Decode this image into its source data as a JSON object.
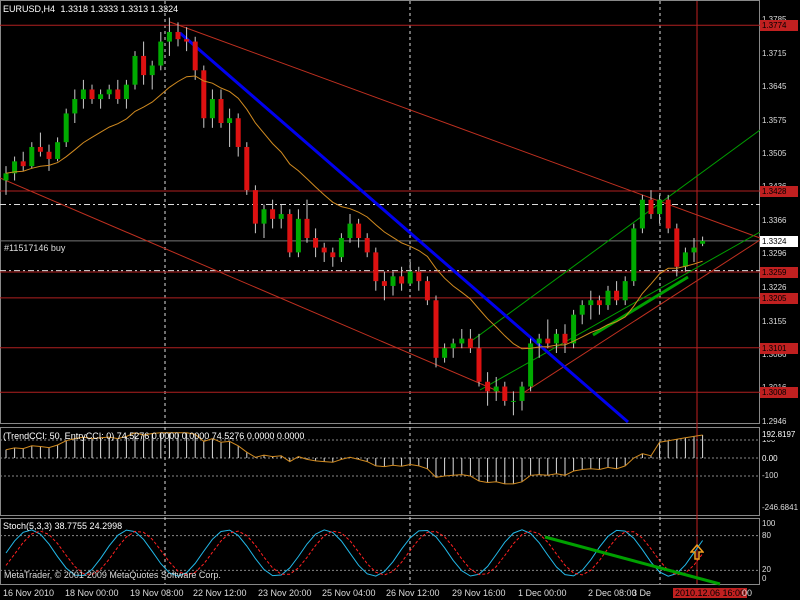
{
  "header": {
    "symbol": "EURUSD,H4",
    "ohlc": "1.3318 1.3333 1.3313 1.3324"
  },
  "order_label": "#11517146 buy",
  "price_axis": {
    "ticks": [
      "1.3785",
      "1.3715",
      "1.3645",
      "1.3575",
      "1.3505",
      "1.3436",
      "1.3366",
      "1.3296",
      "1.3226",
      "1.3155",
      "1.3086",
      "1.3016",
      "1.2946"
    ],
    "tags": [
      {
        "text": "1.3774",
        "kind": "red"
      },
      {
        "text": "1.3428",
        "kind": "red"
      },
      {
        "text": "1.3324",
        "kind": "white"
      },
      {
        "text": "1.3259",
        "kind": "red"
      },
      {
        "text": "1.3205",
        "kind": "red"
      },
      {
        "text": "1.3101",
        "kind": "red"
      },
      {
        "text": "1.3008",
        "kind": "red"
      }
    ]
  },
  "cci_panel": {
    "title": "(TrendCCI: 50, EntryCCI: 0)  74.5276 0.0000 0.0000 74.5276 0.0000 0.0000",
    "ticks": [
      "100",
      "0.00",
      "-100",
      "-246.6841"
    ],
    "tags": [
      "192.8197",
      "0.00"
    ]
  },
  "stoch_panel": {
    "title": "Stoch(5,3,3) 38.7755 24.2998",
    "ticks": [
      "100",
      "80",
      "20",
      "0"
    ]
  },
  "copyright": "MetaTrader, © 2001-2009 MetaQuotes Software Corp.",
  "time_axis": [
    "16 Nov 2010",
    "18 Nov 00:00",
    "19 Nov 08:00",
    "22 Nov 12:00",
    "23 Nov 20:00",
    "25 Nov 04:00",
    "26 Nov 12:00",
    "29 Nov 16:00",
    "1 Dec 00:00",
    "2 Dec 08:00",
    "3 De",
    "2010.12.06 16:00",
    "00"
  ],
  "colors": {
    "bull": "#00aa00",
    "bear": "#dd1111",
    "ma": "#d08a20",
    "trendline": "#0000ee",
    "channel": "#c03020",
    "green_channel": "#00a000",
    "stoch_main": "#22b8e8",
    "stoch_signal": "#ff2020",
    "level": "#b02020"
  },
  "chart_data": {
    "type": "candlestick",
    "symbol": "EURUSD",
    "timeframe": "H4",
    "y_range": [
      1.2946,
      1.3785
    ],
    "candles": [
      [
        1.345,
        1.348,
        1.342,
        1.3465
      ],
      [
        1.3465,
        1.35,
        1.345,
        1.349
      ],
      [
        1.349,
        1.351,
        1.347,
        1.348
      ],
      [
        1.348,
        1.353,
        1.3475,
        1.352
      ],
      [
        1.352,
        1.355,
        1.35,
        1.351
      ],
      [
        1.351,
        1.3525,
        1.347,
        1.3495
      ],
      [
        1.3495,
        1.354,
        1.349,
        1.353
      ],
      [
        1.353,
        1.36,
        1.352,
        1.359
      ],
      [
        1.359,
        1.364,
        1.357,
        1.362
      ],
      [
        1.362,
        1.366,
        1.36,
        1.364
      ],
      [
        1.364,
        1.365,
        1.361,
        1.362
      ],
      [
        1.362,
        1.364,
        1.36,
        1.363
      ],
      [
        1.363,
        1.365,
        1.362,
        1.364
      ],
      [
        1.364,
        1.366,
        1.361,
        1.362
      ],
      [
        1.362,
        1.366,
        1.36,
        1.365
      ],
      [
        1.365,
        1.372,
        1.364,
        1.371
      ],
      [
        1.371,
        1.374,
        1.365,
        1.367
      ],
      [
        1.367,
        1.37,
        1.364,
        1.369
      ],
      [
        1.369,
        1.376,
        1.368,
        1.374
      ],
      [
        1.374,
        1.379,
        1.371,
        1.376
      ],
      [
        1.376,
        1.378,
        1.373,
        1.3745
      ],
      [
        1.3745,
        1.377,
        1.372,
        1.374
      ],
      [
        1.374,
        1.375,
        1.366,
        1.368
      ],
      [
        1.368,
        1.369,
        1.356,
        1.358
      ],
      [
        1.358,
        1.364,
        1.356,
        1.362
      ],
      [
        1.362,
        1.364,
        1.356,
        1.357
      ],
      [
        1.357,
        1.36,
        1.352,
        1.358
      ],
      [
        1.358,
        1.359,
        1.35,
        1.352
      ],
      [
        1.352,
        1.353,
        1.342,
        1.343
      ],
      [
        1.343,
        1.344,
        1.334,
        1.336
      ],
      [
        1.336,
        1.34,
        1.333,
        1.339
      ],
      [
        1.339,
        1.341,
        1.335,
        1.337
      ],
      [
        1.337,
        1.34,
        1.335,
        1.338
      ],
      [
        1.338,
        1.339,
        1.329,
        1.33
      ],
      [
        1.33,
        1.339,
        1.329,
        1.337
      ],
      [
        1.337,
        1.341,
        1.332,
        1.333
      ],
      [
        1.333,
        1.335,
        1.329,
        1.331
      ],
      [
        1.331,
        1.332,
        1.328,
        1.33
      ],
      [
        1.33,
        1.331,
        1.327,
        1.329
      ],
      [
        1.329,
        1.334,
        1.328,
        1.333
      ],
      [
        1.333,
        1.338,
        1.332,
        1.336
      ],
      [
        1.336,
        1.337,
        1.331,
        1.333
      ],
      [
        1.333,
        1.334,
        1.329,
        1.33
      ],
      [
        1.33,
        1.331,
        1.322,
        1.324
      ],
      [
        1.324,
        1.326,
        1.32,
        1.323
      ],
      [
        1.323,
        1.326,
        1.321,
        1.325
      ],
      [
        1.325,
        1.327,
        1.322,
        1.3235
      ],
      [
        1.3235,
        1.328,
        1.323,
        1.326
      ],
      [
        1.326,
        1.327,
        1.322,
        1.324
      ],
      [
        1.324,
        1.325,
        1.319,
        1.32
      ],
      [
        1.32,
        1.321,
        1.306,
        1.308
      ],
      [
        1.308,
        1.311,
        1.307,
        1.31
      ],
      [
        1.31,
        1.312,
        1.308,
        1.311
      ],
      [
        1.311,
        1.314,
        1.31,
        1.312
      ],
      [
        1.312,
        1.314,
        1.309,
        1.31
      ],
      [
        1.31,
        1.313,
        1.302,
        1.303
      ],
      [
        1.303,
        1.305,
        1.298,
        1.301
      ],
      [
        1.301,
        1.304,
        1.299,
        1.302
      ],
      [
        1.302,
        1.303,
        1.298,
        1.299
      ],
      [
        1.299,
        1.301,
        1.296,
        1.299
      ],
      [
        1.299,
        1.303,
        1.297,
        1.302
      ],
      [
        1.302,
        1.312,
        1.301,
        1.311
      ],
      [
        1.311,
        1.313,
        1.308,
        1.312
      ],
      [
        1.312,
        1.316,
        1.31,
        1.311
      ],
      [
        1.311,
        1.314,
        1.309,
        1.313
      ],
      [
        1.313,
        1.315,
        1.309,
        1.311
      ],
      [
        1.311,
        1.318,
        1.31,
        1.317
      ],
      [
        1.317,
        1.32,
        1.315,
        1.319
      ],
      [
        1.319,
        1.322,
        1.316,
        1.32
      ],
      [
        1.32,
        1.321,
        1.317,
        1.319
      ],
      [
        1.319,
        1.323,
        1.318,
        1.322
      ],
      [
        1.322,
        1.324,
        1.319,
        1.32
      ],
      [
        1.32,
        1.325,
        1.319,
        1.324
      ],
      [
        1.324,
        1.336,
        1.323,
        1.335
      ],
      [
        1.335,
        1.342,
        1.334,
        1.341
      ],
      [
        1.341,
        1.343,
        1.337,
        1.338
      ],
      [
        1.338,
        1.342,
        1.336,
        1.341
      ],
      [
        1.341,
        1.342,
        1.334,
        1.335
      ],
      [
        1.335,
        1.336,
        1.325,
        1.327
      ],
      [
        1.327,
        1.331,
        1.326,
        1.33
      ],
      [
        1.33,
        1.333,
        1.328,
        1.331
      ],
      [
        1.3318,
        1.3333,
        1.3313,
        1.3324
      ]
    ]
  }
}
